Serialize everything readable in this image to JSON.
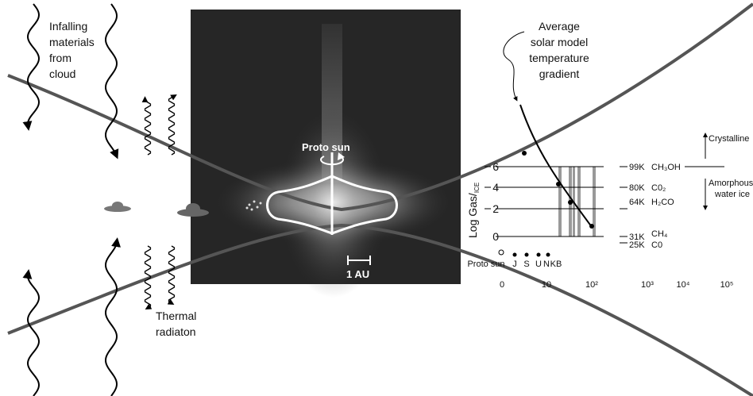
{
  "labels": {
    "infalling": [
      "Infalling",
      "materials",
      "from",
      "cloud"
    ],
    "thermal": [
      "Thermal",
      "radiaton"
    ],
    "proto_sun": "Proto sun",
    "scale": "1 AU",
    "gradient": [
      "Average",
      "solar model",
      "temperature",
      "gradient"
    ]
  },
  "plot": {
    "y_label": "Log Gas/",
    "y_label_sub": "ICE",
    "y_ticks": [
      "6",
      "4",
      "2",
      "0"
    ],
    "x_ticks": [
      "0",
      "10",
      "10²",
      "10³",
      "10⁴",
      "10⁵"
    ],
    "origin_label": "Proto sun",
    "bodies": [
      "J",
      "S",
      "U",
      "N",
      "KB"
    ],
    "temperatures": [
      {
        "temp": "99K",
        "molecule": "CH₃OH"
      },
      {
        "temp": "80K",
        "molecule": "C0₂"
      },
      {
        "temp": "64K",
        "molecule": "H₂CO"
      },
      {
        "temp": "31K",
        "molecule": "CH₄"
      },
      {
        "temp": "25K",
        "molecule": "C0"
      }
    ],
    "phases": {
      "crystalline": "Crystalline",
      "amorphous": [
        "Amorphous",
        "water ice"
      ]
    }
  }
}
